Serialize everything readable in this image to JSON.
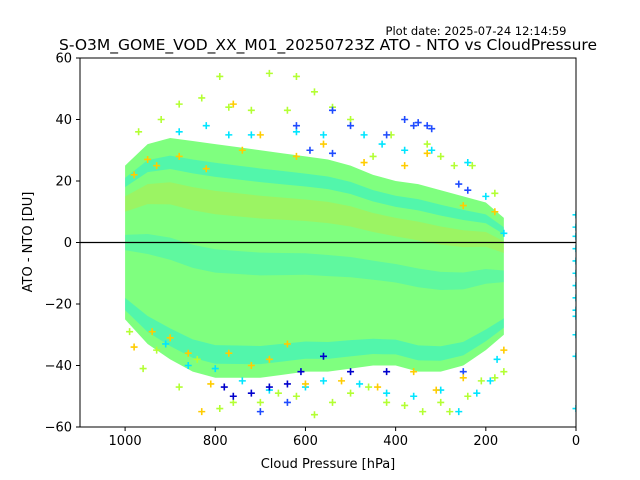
{
  "header": {
    "plot_date": "Plot date: 2025-07-24 12:14:59"
  },
  "chart_data": {
    "type": "scatter",
    "title": "S-O3M_GOME_VOD_XX_M01_20250723Z ATO - NTO vs CloudPressure",
    "xlabel": "Cloud Pressure [hPa]",
    "ylabel": "ATO - NTO [DU]",
    "xlim": [
      1100,
      0
    ],
    "ylim": [
      -60,
      60
    ],
    "x_ticks": [
      1000,
      800,
      600,
      400,
      200,
      0
    ],
    "y_ticks": [
      -60,
      -40,
      -20,
      0,
      20,
      40,
      60
    ],
    "marker": "plus",
    "reference_line": {
      "y": 0,
      "color": "#000000"
    },
    "grid": false,
    "legend": "none",
    "colors": {
      "dense": "#7fff7f",
      "mid": "#55ff99",
      "cyan": "#00e5ff",
      "blue": "#1f4bff",
      "dark_blue": "#0000cc",
      "yellow": "#ffcc00",
      "lime": "#b3ff33"
    },
    "cloud_envelope": {
      "x": [
        1000,
        950,
        900,
        850,
        800,
        750,
        700,
        650,
        600,
        550,
        500,
        450,
        400,
        350,
        300,
        250,
        200,
        160
      ],
      "upper": [
        25,
        32,
        34,
        33,
        32,
        31,
        30,
        29,
        28,
        27,
        25,
        22,
        20,
        19,
        17,
        15,
        13,
        8
      ],
      "lower": [
        -25,
        -33,
        -38,
        -42,
        -44,
        -44,
        -44,
        -43,
        -42,
        -42,
        -41,
        -40,
        -40,
        -42,
        -42,
        -40,
        -35,
        -30
      ]
    },
    "series": [
      {
        "values": [
          [
            970,
            36
          ],
          [
            920,
            40
          ],
          [
            880,
            45
          ],
          [
            830,
            47
          ],
          [
            790,
            54
          ],
          [
            770,
            44
          ],
          [
            720,
            43
          ],
          [
            680,
            55
          ],
          [
            640,
            43
          ],
          [
            620,
            54
          ],
          [
            580,
            49
          ],
          [
            540,
            44
          ],
          [
            500,
            40
          ],
          [
            450,
            28
          ],
          [
            410,
            35
          ],
          [
            330,
            32
          ],
          [
            300,
            28
          ],
          [
            270,
            25
          ],
          [
            230,
            25
          ],
          [
            180,
            16
          ],
          [
            990,
            -29
          ],
          [
            960,
            -41
          ],
          [
            930,
            -35
          ],
          [
            880,
            -47
          ],
          [
            840,
            -38
          ],
          [
            790,
            -54
          ],
          [
            760,
            -52
          ],
          [
            700,
            -52
          ],
          [
            660,
            -49
          ],
          [
            620,
            -50
          ],
          [
            580,
            -56
          ],
          [
            540,
            -52
          ],
          [
            500,
            -49
          ],
          [
            460,
            -47
          ],
          [
            420,
            -52
          ],
          [
            380,
            -53
          ],
          [
            340,
            -55
          ],
          [
            300,
            -52
          ],
          [
            280,
            -55
          ],
          [
            240,
            -50
          ],
          [
            210,
            -45
          ],
          [
            180,
            -44
          ],
          [
            160,
            -42
          ]
        ]
      },
      {
        "values": [
          [
            880,
            36
          ],
          [
            820,
            38
          ],
          [
            770,
            35
          ],
          [
            720,
            35
          ],
          [
            620,
            36
          ],
          [
            560,
            35
          ],
          [
            470,
            35
          ],
          [
            430,
            32
          ],
          [
            380,
            30
          ],
          [
            320,
            30
          ],
          [
            240,
            26
          ],
          [
            200,
            15
          ],
          [
            160,
            3
          ],
          [
            910,
            -33
          ],
          [
            860,
            -40
          ],
          [
            800,
            -41
          ],
          [
            740,
            -45
          ],
          [
            680,
            -48
          ],
          [
            600,
            -47
          ],
          [
            560,
            -45
          ],
          [
            480,
            -46
          ],
          [
            420,
            -49
          ],
          [
            360,
            -50
          ],
          [
            300,
            -48
          ],
          [
            260,
            -55
          ],
          [
            220,
            -49
          ],
          [
            190,
            -45
          ],
          [
            175,
            -38
          ]
        ]
      },
      {
        "values": [
          [
            780,
            -47
          ],
          [
            760,
            -50
          ],
          [
            720,
            -49
          ],
          [
            680,
            -47
          ],
          [
            640,
            -46
          ],
          [
            610,
            -42
          ],
          [
            560,
            -37
          ],
          [
            500,
            -42
          ],
          [
            420,
            -42
          ],
          [
            380,
            40
          ],
          [
            360,
            38
          ],
          [
            350,
            39
          ],
          [
            330,
            38
          ],
          [
            320,
            37
          ],
          [
            420,
            35
          ],
          [
            540,
            43
          ],
          [
            500,
            38
          ],
          [
            620,
            38
          ],
          [
            540,
            29
          ],
          [
            590,
            30
          ],
          [
            260,
            19
          ],
          [
            240,
            17
          ],
          [
            700,
            -55
          ],
          [
            640,
            -52
          ],
          [
            250,
            -42
          ]
        ]
      },
      {
        "values": [
          [
            980,
            22
          ],
          [
            950,
            27
          ],
          [
            930,
            25
          ],
          [
            880,
            28
          ],
          [
            820,
            24
          ],
          [
            760,
            45
          ],
          [
            740,
            30
          ],
          [
            700,
            35
          ],
          [
            620,
            28
          ],
          [
            560,
            32
          ],
          [
            470,
            26
          ],
          [
            380,
            25
          ],
          [
            330,
            29
          ],
          [
            250,
            12
          ],
          [
            180,
            10
          ],
          [
            980,
            -34
          ],
          [
            940,
            -29
          ],
          [
            900,
            -31
          ],
          [
            860,
            -36
          ],
          [
            830,
            -55
          ],
          [
            810,
            -46
          ],
          [
            770,
            -36
          ],
          [
            720,
            -40
          ],
          [
            680,
            -38
          ],
          [
            640,
            -33
          ],
          [
            600,
            -46
          ],
          [
            520,
            -45
          ],
          [
            440,
            -47
          ],
          [
            360,
            -42
          ],
          [
            310,
            -48
          ],
          [
            250,
            -44
          ],
          [
            160,
            -35
          ]
        ]
      },
      {
        "values": [
          [
            0,
            9
          ],
          [
            0,
            5
          ],
          [
            0,
            2
          ],
          [
            0,
            -2
          ],
          [
            0,
            -6
          ],
          [
            0,
            -10
          ],
          [
            0,
            -14
          ],
          [
            0,
            -18
          ],
          [
            0,
            -22
          ],
          [
            0,
            -30
          ],
          [
            0,
            -37
          ],
          [
            0,
            -54
          ],
          [
            0,
            -24
          ]
        ]
      }
    ]
  }
}
